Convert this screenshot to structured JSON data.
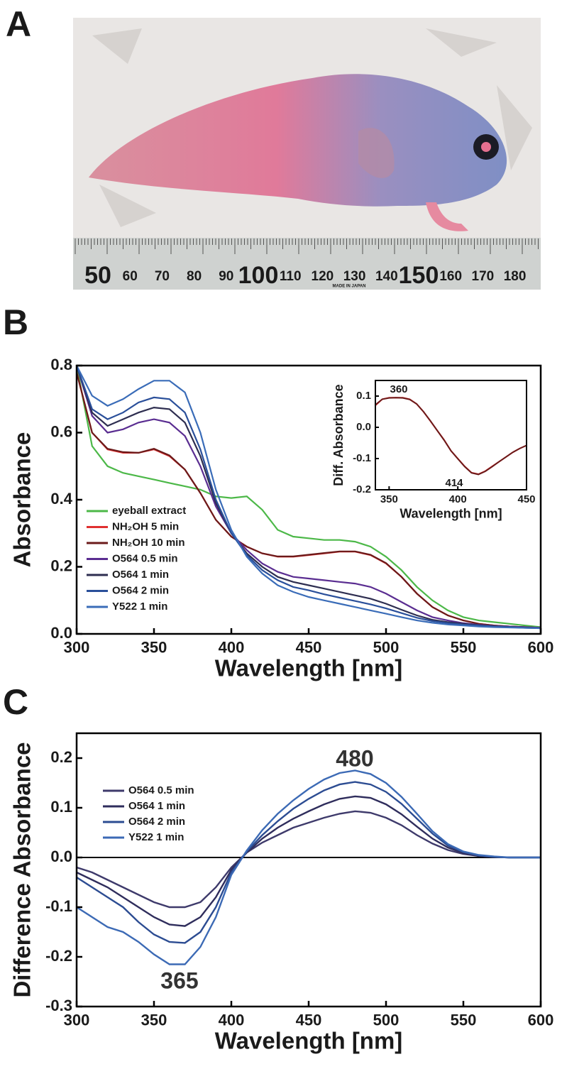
{
  "panel_labels": [
    "A",
    "B",
    "C"
  ],
  "photo": {
    "ruler_labels": [
      "50",
      "60",
      "70",
      "80",
      "90",
      "100",
      "110",
      "120",
      "130",
      "140",
      "150",
      "160",
      "170",
      "180"
    ],
    "maker": "MADE IN JAPAN"
  },
  "chart_data": [
    {
      "type": "line",
      "xlabel": "Wavelength [nm]",
      "ylabel": "Absorbance",
      "xlim": [
        300,
        600
      ],
      "xticks": [
        300,
        350,
        400,
        450,
        500,
        550,
        600
      ],
      "ylim": [
        0,
        0.8
      ],
      "yticks": [
        {
          "value": 0,
          "label": "0.0"
        },
        0.2,
        0.4,
        0.6,
        0.8
      ],
      "legend": "lower left",
      "grid": false,
      "x": [
        300,
        310,
        320,
        330,
        340,
        350,
        360,
        370,
        380,
        390,
        400,
        410,
        420,
        430,
        440,
        450,
        460,
        470,
        480,
        490,
        500,
        510,
        520,
        530,
        540,
        550,
        560,
        570,
        580,
        590,
        600
      ],
      "series": [
        {
          "name": "eyeball extract",
          "color": "#4cb848",
          "values": [
            0.8,
            0.56,
            0.5,
            0.48,
            0.47,
            0.46,
            0.45,
            0.44,
            0.43,
            0.41,
            0.405,
            0.41,
            0.37,
            0.31,
            0.29,
            0.285,
            0.28,
            0.28,
            0.275,
            0.26,
            0.23,
            0.19,
            0.14,
            0.1,
            0.07,
            0.05,
            0.04,
            0.035,
            0.03,
            0.025,
            0.02
          ]
        },
        {
          "name": "NH₂OH 5 min",
          "color": "#e03030",
          "values": [
            0.78,
            0.6,
            0.55,
            0.54,
            0.54,
            0.55,
            0.53,
            0.49,
            0.42,
            0.34,
            0.29,
            0.26,
            0.24,
            0.23,
            0.23,
            0.235,
            0.24,
            0.245,
            0.245,
            0.235,
            0.21,
            0.17,
            0.12,
            0.08,
            0.055,
            0.04,
            0.03,
            0.025,
            0.022,
            0.02,
            0.018
          ]
        },
        {
          "name": "NH₂OH 10 min",
          "color": "#6b1a1a",
          "values": [
            0.78,
            0.6,
            0.552,
            0.542,
            0.54,
            0.552,
            0.532,
            0.49,
            0.42,
            0.34,
            0.29,
            0.26,
            0.24,
            0.231,
            0.231,
            0.236,
            0.241,
            0.246,
            0.246,
            0.236,
            0.211,
            0.17,
            0.12,
            0.08,
            0.055,
            0.04,
            0.03,
            0.025,
            0.022,
            0.02,
            0.018
          ]
        },
        {
          "name": "O564 0.5 min",
          "color": "#5a2d91",
          "values": [
            0.8,
            0.65,
            0.6,
            0.61,
            0.63,
            0.64,
            0.63,
            0.59,
            0.5,
            0.38,
            0.3,
            0.25,
            0.21,
            0.185,
            0.17,
            0.165,
            0.16,
            0.155,
            0.15,
            0.14,
            0.12,
            0.095,
            0.07,
            0.05,
            0.04,
            0.032,
            0.027,
            0.024,
            0.022,
            0.02,
            0.018
          ]
        },
        {
          "name": "O564 1 min",
          "color": "#2e2e50",
          "values": [
            0.8,
            0.66,
            0.62,
            0.64,
            0.66,
            0.675,
            0.67,
            0.63,
            0.53,
            0.39,
            0.3,
            0.24,
            0.2,
            0.17,
            0.155,
            0.145,
            0.135,
            0.125,
            0.115,
            0.105,
            0.09,
            0.072,
            0.055,
            0.042,
            0.035,
            0.03,
            0.026,
            0.023,
            0.021,
            0.019,
            0.017
          ]
        },
        {
          "name": "O564 2 min",
          "color": "#2a4f9a",
          "values": [
            0.8,
            0.67,
            0.64,
            0.66,
            0.69,
            0.705,
            0.7,
            0.66,
            0.55,
            0.4,
            0.3,
            0.235,
            0.19,
            0.16,
            0.14,
            0.13,
            0.118,
            0.108,
            0.098,
            0.088,
            0.076,
            0.062,
            0.048,
            0.038,
            0.032,
            0.028,
            0.025,
            0.022,
            0.02,
            0.018,
            0.017
          ]
        },
        {
          "name": "Y522 1 min",
          "color": "#3a6cb8",
          "values": [
            0.8,
            0.71,
            0.68,
            0.7,
            0.73,
            0.755,
            0.755,
            0.72,
            0.6,
            0.43,
            0.31,
            0.23,
            0.18,
            0.145,
            0.125,
            0.11,
            0.1,
            0.09,
            0.08,
            0.07,
            0.06,
            0.05,
            0.04,
            0.033,
            0.028,
            0.025,
            0.022,
            0.02,
            0.019,
            0.018,
            0.017
          ]
        }
      ],
      "inset": {
        "type": "line",
        "xlabel": "Wavelength [nm]",
        "ylabel": "Diff. Absorbance",
        "xlim": [
          340,
          450
        ],
        "xticks": [
          350,
          400,
          450
        ],
        "ylim": [
          -0.2,
          0.15
        ],
        "yticks": [
          -0.2,
          -0.1,
          {
            "value": 0,
            "label": "0.0"
          },
          0.1
        ],
        "annotations": [
          "360",
          "414"
        ],
        "x": [
          340,
          345,
          350,
          355,
          360,
          365,
          370,
          375,
          380,
          385,
          390,
          395,
          400,
          405,
          410,
          415,
          420,
          425,
          430,
          435,
          440,
          445,
          450
        ],
        "series": [
          {
            "color": "#e03030",
            "values": [
              0.07,
              0.09,
              0.095,
              0.095,
              0.095,
              0.09,
              0.075,
              0.05,
              0.02,
              -0.01,
              -0.04,
              -0.075,
              -0.1,
              -0.125,
              -0.145,
              -0.15,
              -0.14,
              -0.125,
              -0.11,
              -0.095,
              -0.08,
              -0.068,
              -0.058
            ]
          },
          {
            "color": "#6b1a1a",
            "values": [
              0.072,
              0.09,
              0.094,
              0.095,
              0.094,
              0.089,
              0.075,
              0.05,
              0.021,
              -0.01,
              -0.041,
              -0.075,
              -0.101,
              -0.126,
              -0.146,
              -0.151,
              -0.141,
              -0.126,
              -0.11,
              -0.095,
              -0.08,
              -0.068,
              -0.058
            ]
          }
        ]
      }
    },
    {
      "type": "line",
      "xlabel": "Wavelength [nm]",
      "ylabel": "Difference Absorbance",
      "xlim": [
        300,
        600
      ],
      "xticks": [
        300,
        350,
        400,
        450,
        500,
        550,
        600
      ],
      "ylim": [
        -0.3,
        0.25
      ],
      "yticks": [
        -0.3,
        -0.2,
        -0.1,
        {
          "value": 0,
          "label": "0.0"
        },
        0.1,
        0.2
      ],
      "legend": "upper left",
      "grid": false,
      "zero_line": true,
      "annotations": [
        "480",
        "365"
      ],
      "x": [
        300,
        310,
        320,
        330,
        340,
        350,
        360,
        370,
        380,
        390,
        400,
        410,
        420,
        430,
        440,
        450,
        460,
        470,
        480,
        490,
        500,
        510,
        520,
        530,
        540,
        550,
        560,
        570,
        580,
        590,
        600
      ],
      "series": [
        {
          "name": "O564 0.5 min",
          "color": "#3e3a6b",
          "values": [
            -0.02,
            -0.03,
            -0.045,
            -0.06,
            -0.075,
            -0.09,
            -0.1,
            -0.1,
            -0.09,
            -0.06,
            -0.02,
            0.01,
            0.03,
            0.045,
            0.06,
            0.07,
            0.08,
            0.088,
            0.093,
            0.09,
            0.08,
            0.065,
            0.045,
            0.028,
            0.015,
            0.007,
            0.003,
            0.001,
            0,
            0,
            0
          ]
        },
        {
          "name": "O564 1 min",
          "color": "#2f2d5c",
          "values": [
            -0.03,
            -0.045,
            -0.06,
            -0.08,
            -0.1,
            -0.12,
            -0.135,
            -0.138,
            -0.12,
            -0.08,
            -0.025,
            0.01,
            0.038,
            0.06,
            0.078,
            0.093,
            0.107,
            0.118,
            0.123,
            0.12,
            0.107,
            0.087,
            0.062,
            0.038,
            0.02,
            0.009,
            0.003,
            0.001,
            0,
            0,
            0
          ]
        },
        {
          "name": "O564 2 min",
          "color": "#2c4c92",
          "values": [
            -0.04,
            -0.06,
            -0.08,
            -0.1,
            -0.13,
            -0.155,
            -0.17,
            -0.172,
            -0.15,
            -0.1,
            -0.03,
            0.012,
            0.045,
            0.073,
            0.098,
            0.118,
            0.135,
            0.147,
            0.152,
            0.147,
            0.132,
            0.108,
            0.078,
            0.048,
            0.024,
            0.011,
            0.004,
            0.001,
            0,
            0,
            0
          ]
        },
        {
          "name": "Y522 1 min",
          "color": "#3c6ab5",
          "values": [
            -0.1,
            -0.12,
            -0.14,
            -0.15,
            -0.17,
            -0.195,
            -0.215,
            -0.215,
            -0.18,
            -0.12,
            -0.035,
            0.014,
            0.055,
            0.088,
            0.115,
            0.138,
            0.157,
            0.17,
            0.175,
            0.168,
            0.15,
            0.122,
            0.088,
            0.053,
            0.027,
            0.012,
            0.005,
            0.002,
            0,
            0,
            0
          ]
        }
      ]
    }
  ]
}
